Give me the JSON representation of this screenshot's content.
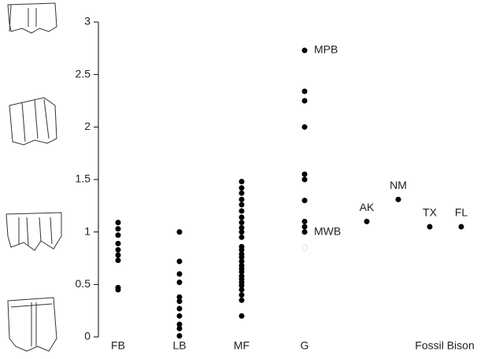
{
  "chart_data": {
    "type": "strip",
    "categories": [
      "FB",
      "LB",
      "MF",
      "G",
      "Fossil Bison"
    ],
    "values": [
      [
        1.09,
        1.03,
        0.97,
        0.89,
        0.83,
        0.78,
        0.73,
        0.47,
        0.45
      ],
      [
        1.0,
        0.72,
        0.6,
        0.52,
        0.38,
        0.34,
        0.27,
        0.2,
        0.12,
        0.08,
        0.01
      ],
      [
        1.48,
        1.42,
        1.37,
        1.31,
        1.26,
        1.2,
        1.14,
        1.09,
        1.04,
        1.0,
        0.95,
        0.86,
        0.83,
        0.79,
        0.76,
        0.72,
        0.68,
        0.65,
        0.62,
        0.58,
        0.55,
        0.52,
        0.49,
        0.45,
        0.4,
        0.35,
        0.2
      ],
      [
        2.73,
        2.34,
        2.25,
        2.0,
        1.55,
        1.5,
        1.3,
        1.1,
        1.05,
        1.0
      ],
      [
        1.1,
        1.31,
        1.05,
        1.05
      ]
    ],
    "point_labels": [
      "AK",
      "NM",
      "TX",
      "FL"
    ],
    "annotations": [
      {
        "text": "MPB",
        "category": "G",
        "value": 2.73
      },
      {
        "text": "MWB",
        "category": "G",
        "value": 1.0
      }
    ],
    "faint_points": [
      {
        "category": "G",
        "value": 0.85,
        "color": "#dddddd"
      }
    ],
    "color": "#000000",
    "ylim": [
      0,
      3
    ],
    "yticks": [
      0,
      0.5,
      1,
      1.5,
      2,
      2.5,
      3
    ]
  }
}
